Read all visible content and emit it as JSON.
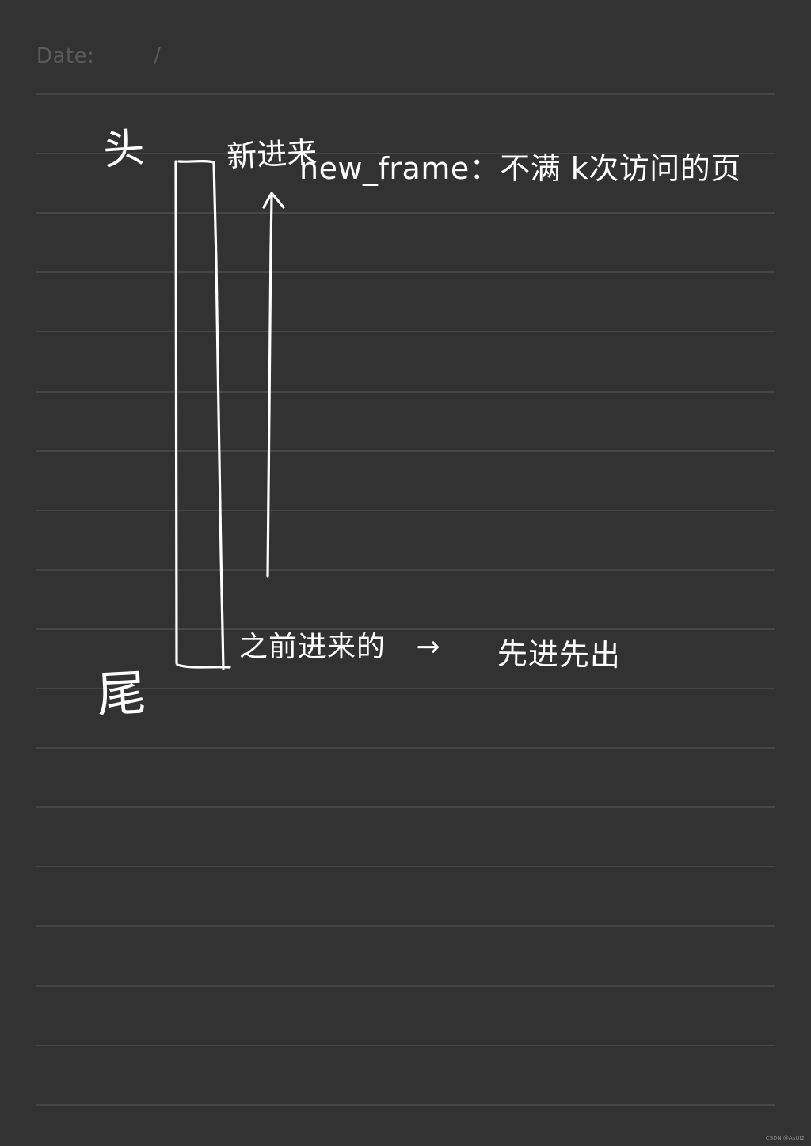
{
  "header": {
    "date_label": "Date:",
    "date_separator": "/"
  },
  "notes": {
    "head_label": "头",
    "tail_label": "尾",
    "new_in_label": "新进来",
    "new_frame_text": "new_frame：不满 k次访问的页",
    "old_in_text": "之前进来的",
    "arrow_text": "→",
    "fifo_text": "先进先出"
  },
  "watermark": "CSDN @AsUI2",
  "colors": {
    "paper": "#323232",
    "rule": "#454545",
    "ink": "#ffffff",
    "header_text": "#5a5a5a"
  }
}
